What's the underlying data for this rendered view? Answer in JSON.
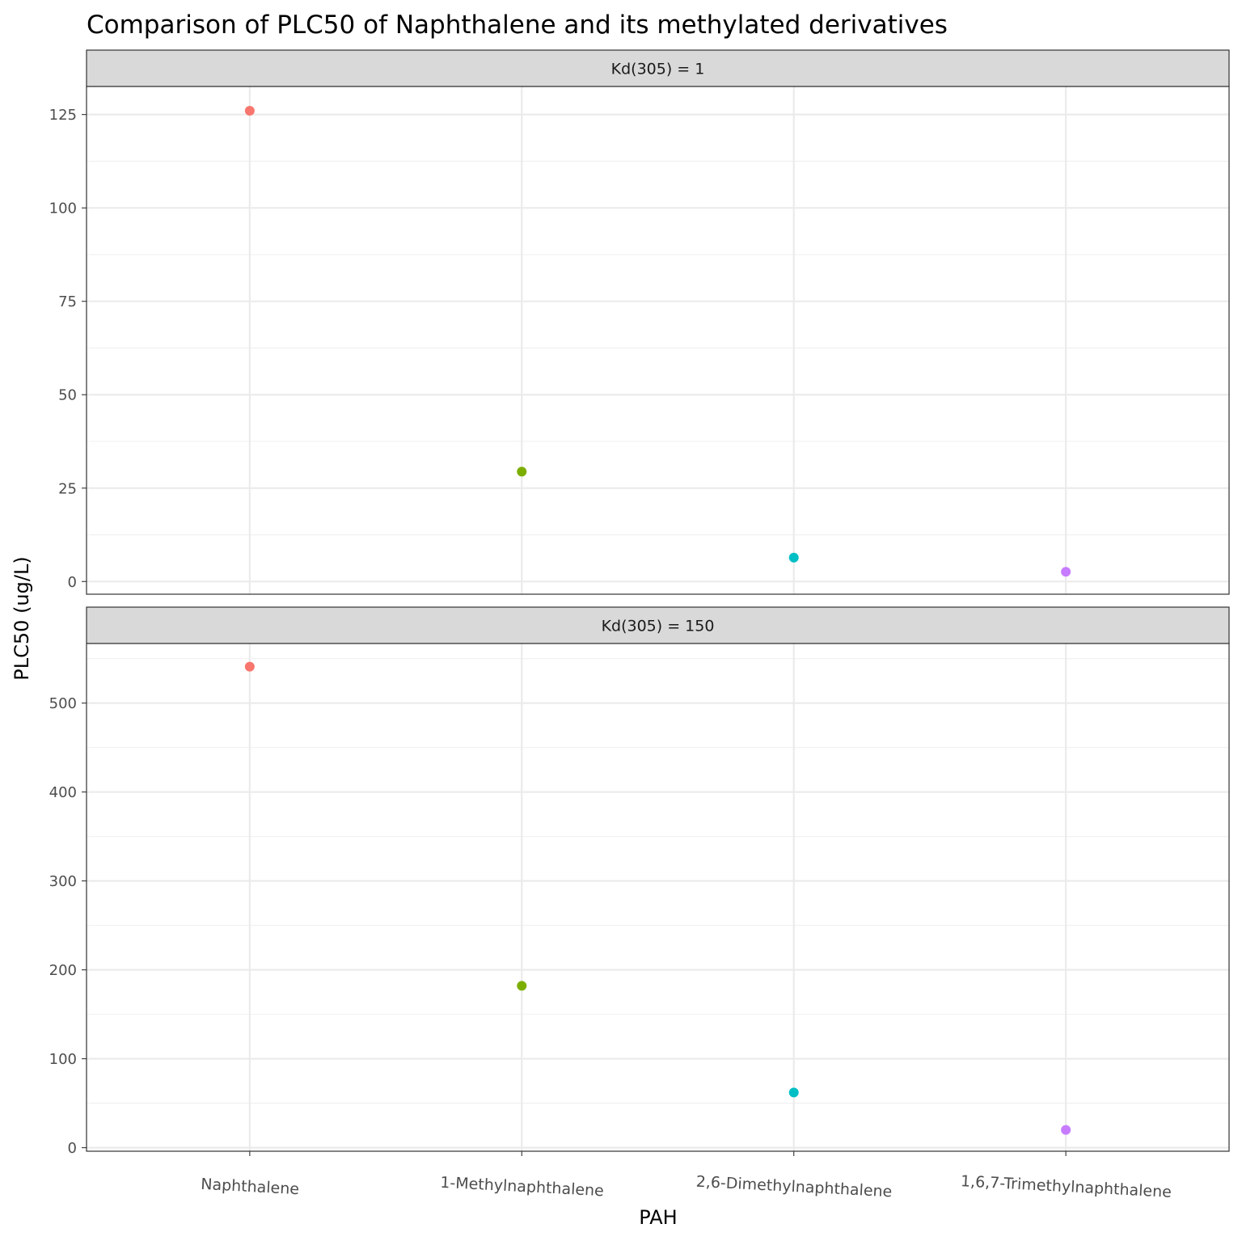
{
  "chart_data": {
    "type": "scatter",
    "title": "Comparison of PLC50 of Naphthalene and its methylated derivatives",
    "xlabel": "PAH",
    "ylabel": "PLC50 (ug/L)",
    "categories": [
      "Naphthalene",
      "1-Methylnaphthalene",
      "2,6-Dimethylnaphthalene",
      "1,6,7-Trimethylnaphthalene"
    ],
    "colors": [
      "#F8766D",
      "#7CAE00",
      "#00BFC4",
      "#C77CFF"
    ],
    "grid": true,
    "legend": "none",
    "panels": [
      {
        "strip_label": "Kd(305) = 1",
        "ylim": [
          -3.4,
          132.5
        ],
        "yticks": [
          0,
          25,
          50,
          75,
          100,
          125
        ],
        "tick_labels": [
          "0",
          "25",
          "50",
          "75",
          "100",
          "125"
        ],
        "values": [
          126,
          29.4,
          6.4,
          2.6
        ]
      },
      {
        "strip_label": "Kd(305) = 150",
        "ylim": [
          -4,
          567
        ],
        "yticks": [
          0,
          100,
          200,
          300,
          400,
          500
        ],
        "tick_labels": [
          "0",
          "100",
          "200",
          "300",
          "400",
          "500"
        ],
        "values": [
          541,
          182,
          62,
          20
        ]
      }
    ]
  }
}
